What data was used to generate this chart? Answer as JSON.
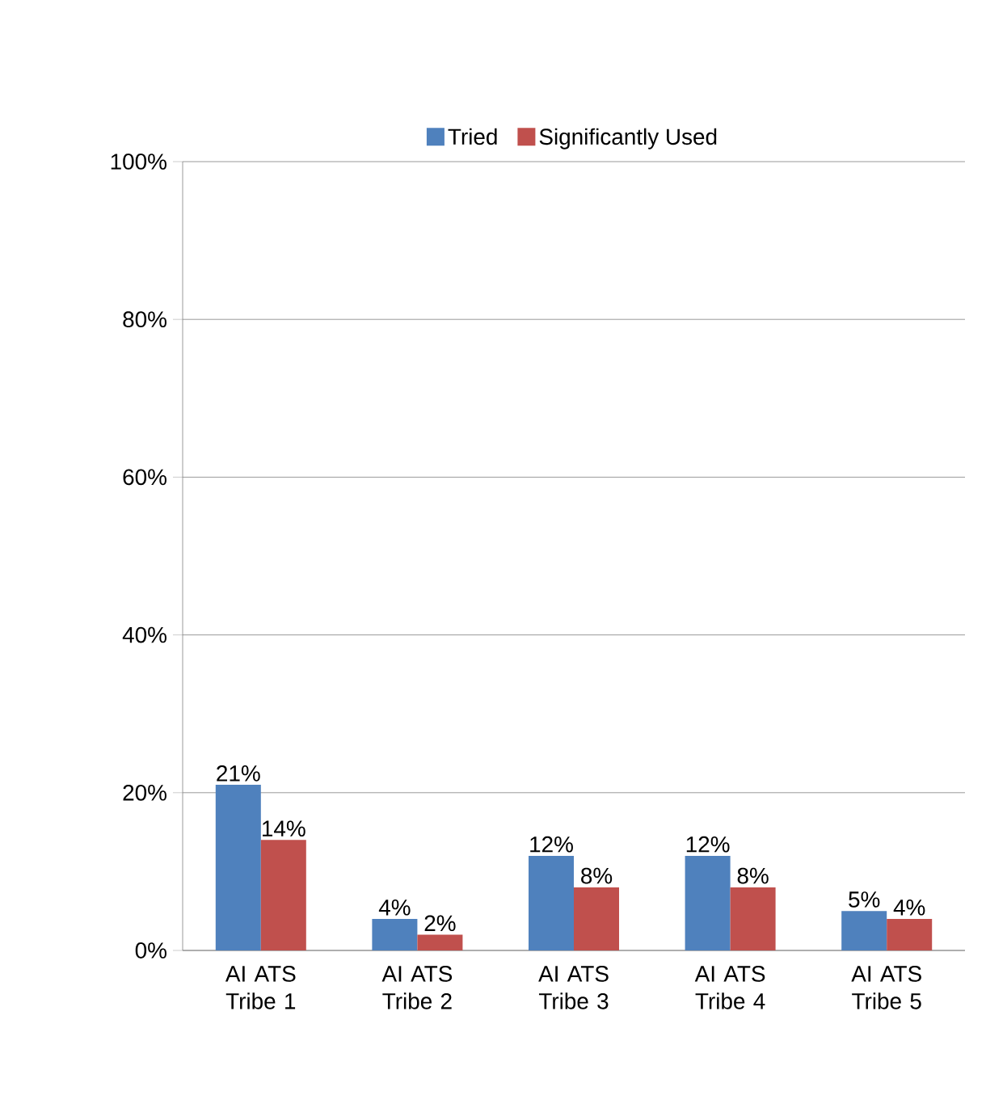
{
  "chart_data": {
    "type": "bar",
    "categories": [
      "AI ATS Tribe 1",
      "AI ATS Tribe 2",
      "AI ATS Tribe 3",
      "AI ATS Tribe 4",
      "AI ATS Tribe 5"
    ],
    "series": [
      {
        "name": "Tried",
        "color": "#4f81bd",
        "values": [
          21,
          4,
          12,
          12,
          5
        ],
        "value_labels": [
          "21%",
          "4%",
          "12%",
          "12%",
          "5%"
        ]
      },
      {
        "name": "Significantly Used",
        "color": "#c0504d",
        "values": [
          14,
          2,
          8,
          8,
          4
        ],
        "value_labels": [
          "14%",
          "2%",
          "8%",
          "8%",
          "4%"
        ]
      }
    ],
    "ylim": [
      0,
      100
    ],
    "yticks": [
      {
        "value": 0,
        "label": "0%"
      },
      {
        "value": 20,
        "label": "20%"
      },
      {
        "value": 40,
        "label": "40%"
      },
      {
        "value": 60,
        "label": "60%"
      },
      {
        "value": 80,
        "label": "80%"
      },
      {
        "value": 100,
        "label": "100%"
      }
    ],
    "grid": "y",
    "legend": "top"
  }
}
